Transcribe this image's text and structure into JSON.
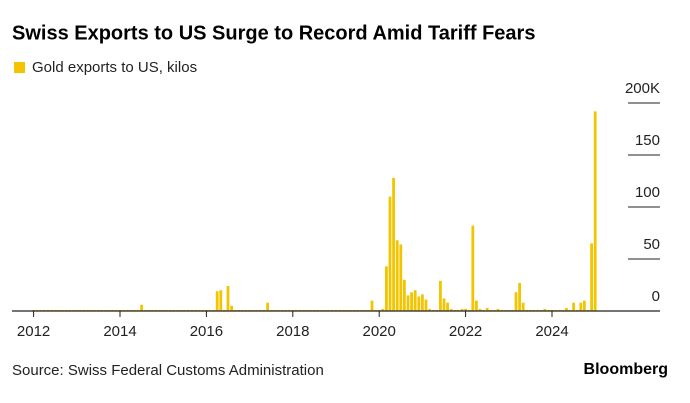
{
  "chart_data": {
    "type": "bar",
    "title": "Swiss Exports to US Surge to Record Amid Tariff Fears",
    "source": "Source: Swiss Federal Customs Administration",
    "brand": "Bloomberg",
    "xlim": [
      2011.5,
      2026.5
    ],
    "xticks": [
      2012,
      2014,
      2016,
      2018,
      2020,
      2022,
      2024
    ],
    "ylim": [
      0,
      200
    ],
    "yticks": [
      0,
      50,
      100,
      150,
      {
        "value": 200,
        "label": "200K"
      }
    ],
    "x": [
      2012.0,
      2012.083,
      2012.167,
      2012.25,
      2012.333,
      2012.417,
      2012.5,
      2012.583,
      2012.667,
      2012.75,
      2012.833,
      2012.917,
      2013.0,
      2013.083,
      2013.167,
      2013.25,
      2013.333,
      2013.417,
      2013.5,
      2013.583,
      2013.667,
      2013.75,
      2013.833,
      2013.917,
      2014.0,
      2014.083,
      2014.167,
      2014.25,
      2014.333,
      2014.417,
      2014.5,
      2014.583,
      2014.667,
      2014.75,
      2014.833,
      2014.917,
      2015.0,
      2015.083,
      2015.167,
      2015.25,
      2015.333,
      2015.417,
      2015.5,
      2015.583,
      2015.667,
      2015.75,
      2015.833,
      2015.917,
      2016.0,
      2016.083,
      2016.167,
      2016.25,
      2016.333,
      2016.417,
      2016.5,
      2016.583,
      2016.667,
      2016.75,
      2016.833,
      2016.917,
      2017.0,
      2017.083,
      2017.167,
      2017.25,
      2017.333,
      2017.417,
      2017.5,
      2017.583,
      2017.667,
      2017.75,
      2017.833,
      2017.917,
      2018.0,
      2018.083,
      2018.167,
      2018.25,
      2018.333,
      2018.417,
      2018.5,
      2018.583,
      2018.667,
      2018.75,
      2018.833,
      2018.917,
      2019.0,
      2019.083,
      2019.167,
      2019.25,
      2019.333,
      2019.417,
      2019.5,
      2019.583,
      2019.667,
      2019.75,
      2019.833,
      2019.917,
      2020.0,
      2020.083,
      2020.167,
      2020.25,
      2020.333,
      2020.417,
      2020.5,
      2020.583,
      2020.667,
      2020.75,
      2020.833,
      2020.917,
      2021.0,
      2021.083,
      2021.167,
      2021.25,
      2021.333,
      2021.417,
      2021.5,
      2021.583,
      2021.667,
      2021.75,
      2021.833,
      2021.917,
      2022.0,
      2022.083,
      2022.167,
      2022.25,
      2022.333,
      2022.417,
      2022.5,
      2022.583,
      2022.667,
      2022.75,
      2022.833,
      2022.917,
      2023.0,
      2023.083,
      2023.167,
      2023.25,
      2023.333,
      2023.417,
      2023.5,
      2023.583,
      2023.667,
      2023.75,
      2023.833,
      2023.917,
      2024.0,
      2024.083,
      2024.167,
      2024.25,
      2024.333,
      2024.417,
      2024.5,
      2024.583,
      2024.667,
      2024.75,
      2024.833,
      2024.917,
      2025.0
    ],
    "series": [
      {
        "name": "Gold exports to US, kilos",
        "color": "#f2c500",
        "values": [
          1,
          1,
          1,
          1,
          1,
          1,
          1,
          1,
          1,
          1,
          1,
          1,
          1,
          1,
          1,
          1,
          1,
          1,
          1,
          1,
          1,
          1,
          1,
          1,
          1,
          1,
          1,
          1,
          1,
          1,
          6,
          1,
          1,
          1,
          1,
          1,
          1,
          1,
          1,
          1,
          1,
          1,
          1,
          1,
          1,
          1,
          1,
          1,
          1,
          1,
          1,
          19,
          20,
          1,
          24,
          5,
          1,
          1,
          1,
          1,
          1,
          1,
          1,
          1,
          1,
          8,
          1,
          1,
          1,
          1,
          1,
          1,
          1,
          1,
          1,
          1,
          1,
          1,
          1,
          1,
          1,
          1,
          1,
          1,
          1,
          1,
          1,
          1,
          1,
          1,
          1,
          1,
          1,
          1,
          10,
          1,
          1,
          2,
          43,
          110,
          128,
          68,
          64,
          30,
          15,
          18,
          20,
          14,
          16,
          11,
          2,
          1,
          1,
          29,
          12,
          8,
          2,
          1,
          1,
          2,
          2,
          1,
          82,
          10,
          2,
          1,
          3,
          1,
          1,
          2,
          1,
          1,
          1,
          1,
          18,
          27,
          8,
          1,
          1,
          1,
          1,
          1,
          2,
          1,
          1,
          1,
          1,
          1,
          3,
          1,
          8,
          1,
          8,
          10,
          1,
          65,
          192
        ]
      }
    ]
  }
}
